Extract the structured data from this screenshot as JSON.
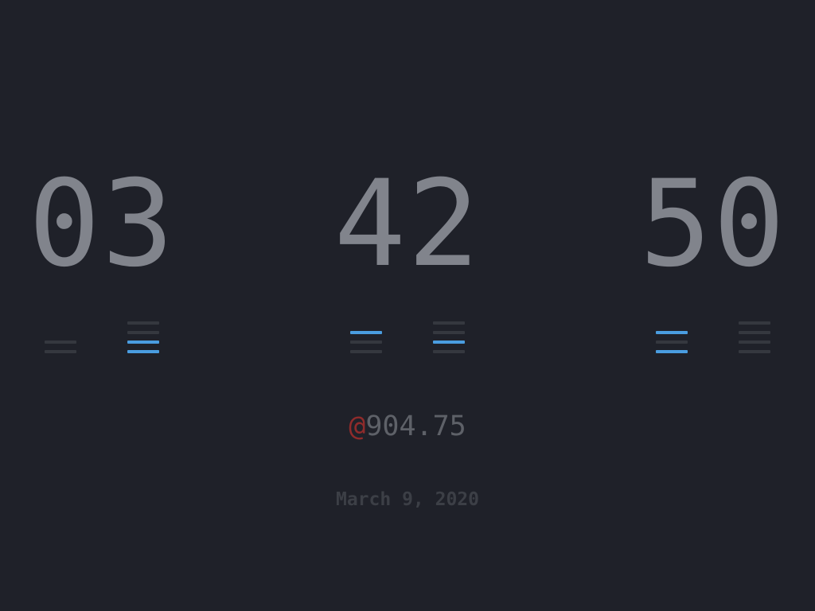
{
  "clock": {
    "hours": "03",
    "minutes": "42",
    "seconds": "50",
    "binary": {
      "hours_tens": 0,
      "hours_ones": 3,
      "minutes_tens": 4,
      "minutes_ones": 2,
      "seconds_tens": 5,
      "seconds_ones": 0
    }
  },
  "beat": {
    "prefix": "@",
    "value": "904.75"
  },
  "date": "March 9, 2020",
  "colors": {
    "background": "#1f2129",
    "digits": "#81848c",
    "bar_on": "#4a9de0",
    "bar_off": "#35383f",
    "beat_prefix": "#8f2b2b",
    "beat_value": "#5e6168",
    "date": "#3c3f46"
  }
}
